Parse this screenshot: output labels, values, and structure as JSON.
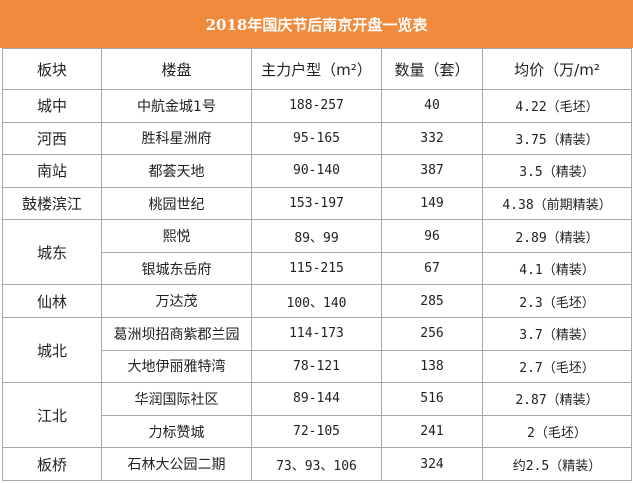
{
  "title": "2018年国庆节后南京开盘一览表",
  "headers": [
    "板块",
    "楼盘",
    "主力户型（m²）",
    "数量（套）",
    "均价（万/m²"
  ],
  "groups": [
    {
      "district": "城中",
      "rows": [
        {
          "project": "中航金城1号",
          "unit": "188-257",
          "count": "40",
          "price": "4.22（毛坯）"
        }
      ]
    },
    {
      "district": "河西",
      "rows": [
        {
          "project": "胜科星洲府",
          "unit": "95-165",
          "count": "332",
          "price": "3.75（精装）"
        }
      ]
    },
    {
      "district": "南站",
      "rows": [
        {
          "project": "都荟天地",
          "unit": "90-140",
          "count": "387",
          "price": "3.5（精装）"
        }
      ]
    },
    {
      "district": "鼓楼滨江",
      "rows": [
        {
          "project": "桃园世纪",
          "unit": "153-197",
          "count": "149",
          "price": "4.38（前期精装）"
        }
      ]
    },
    {
      "district": "城东",
      "rows": [
        {
          "project": "熙悦",
          "unit": "89、99",
          "count": "96",
          "price": "2.89（精装）"
        },
        {
          "project": "银城东岳府",
          "unit": "115-215",
          "count": "67",
          "price": "4.1（精装）"
        }
      ]
    },
    {
      "district": "仙林",
      "rows": [
        {
          "project": "万达茂",
          "unit": "100、140",
          "count": "285",
          "price": "2.3（毛坯）"
        }
      ]
    },
    {
      "district": "城北",
      "rows": [
        {
          "project": "葛洲坝招商紫郡兰园",
          "unit": "114-173",
          "count": "256",
          "price": "3.7（精装）"
        },
        {
          "project": "大地伊丽雅特湾",
          "unit": "78-121",
          "count": "138",
          "price": "2.7（毛坯）"
        }
      ]
    },
    {
      "district": "江北",
      "rows": [
        {
          "project": "华润国际社区",
          "unit": "89-144",
          "count": "516",
          "price": "2.87（精装）"
        },
        {
          "project": "力标赞城",
          "unit": "72-105",
          "count": "241",
          "price": "2（毛坯）"
        }
      ]
    },
    {
      "district": "板桥",
      "rows": [
        {
          "project": "石林大公园二期",
          "unit": "73、93、106",
          "count": "324",
          "price": "约2.5（精装）"
        }
      ]
    }
  ]
}
